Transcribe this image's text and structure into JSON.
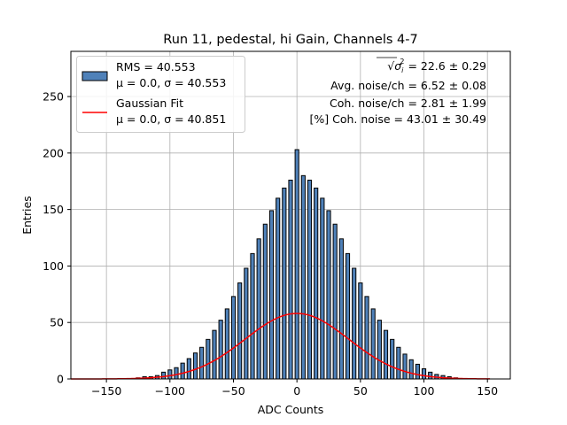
{
  "chart_data": {
    "type": "bar",
    "title": "Run 11, pedestal, hi Gain, Channels 4-7",
    "xlabel": "ADC Counts",
    "ylabel": "Entries",
    "xlim": [
      -178,
      168
    ],
    "ylim": [
      0,
      290
    ],
    "xticks": [
      -150,
      -100,
      -50,
      0,
      50,
      100,
      150
    ],
    "yticks": [
      0,
      50,
      100,
      150,
      200,
      250
    ],
    "grid": true,
    "legend_position": "top-left",
    "annotation_position": "top-right",
    "histogram": {
      "name": "RMS = 40.553",
      "label_line2": "μ = 0.0, σ = 40.553",
      "color": "#4f81b9",
      "edge_color": "#000000",
      "bins": [
        {
          "x": -125,
          "y": 1
        },
        {
          "x": -120,
          "y": 2
        },
        {
          "x": -115,
          "y": 2
        },
        {
          "x": -110,
          "y": 3
        },
        {
          "x": -105,
          "y": 6
        },
        {
          "x": -100,
          "y": 8
        },
        {
          "x": -95,
          "y": 10
        },
        {
          "x": -90,
          "y": 14
        },
        {
          "x": -85,
          "y": 18
        },
        {
          "x": -80,
          "y": 23
        },
        {
          "x": -75,
          "y": 28
        },
        {
          "x": -70,
          "y": 35
        },
        {
          "x": -65,
          "y": 43
        },
        {
          "x": -60,
          "y": 52
        },
        {
          "x": -55,
          "y": 62
        },
        {
          "x": -50,
          "y": 73
        },
        {
          "x": -45,
          "y": 85
        },
        {
          "x": -40,
          "y": 98
        },
        {
          "x": -35,
          "y": 111
        },
        {
          "x": -30,
          "y": 124
        },
        {
          "x": -25,
          "y": 137
        },
        {
          "x": -20,
          "y": 149
        },
        {
          "x": -15,
          "y": 160
        },
        {
          "x": -10,
          "y": 169
        },
        {
          "x": -5,
          "y": 176
        },
        {
          "x": 0,
          "y": 203
        },
        {
          "x": 5,
          "y": 180
        },
        {
          "x": 10,
          "y": 176
        },
        {
          "x": 15,
          "y": 169
        },
        {
          "x": 20,
          "y": 160
        },
        {
          "x": 25,
          "y": 149
        },
        {
          "x": 30,
          "y": 137
        },
        {
          "x": 35,
          "y": 124
        },
        {
          "x": 40,
          "y": 111
        },
        {
          "x": 45,
          "y": 98
        },
        {
          "x": 50,
          "y": 85
        },
        {
          "x": 55,
          "y": 73
        },
        {
          "x": 60,
          "y": 62
        },
        {
          "x": 65,
          "y": 52
        },
        {
          "x": 70,
          "y": 43
        },
        {
          "x": 75,
          "y": 35
        },
        {
          "x": 80,
          "y": 28
        },
        {
          "x": 85,
          "y": 22
        },
        {
          "x": 90,
          "y": 17
        },
        {
          "x": 95,
          "y": 13
        },
        {
          "x": 100,
          "y": 9
        },
        {
          "x": 105,
          "y": 6
        },
        {
          "x": 110,
          "y": 4
        },
        {
          "x": 115,
          "y": 3
        },
        {
          "x": 120,
          "y": 2
        },
        {
          "x": 125,
          "y": 1
        }
      ]
    },
    "fit": {
      "name": "Gaussian Fit",
      "label_line2": "μ = 0.0, σ = 40.851",
      "color": "#ff0000",
      "mu": 0.0,
      "sigma": 40.851,
      "peak": 58,
      "x_range": [
        -178,
        152
      ]
    },
    "annotations": [
      {
        "prefix": "√",
        "var": "σ",
        "sub": "i",
        "sup": "2",
        "rest": " = 22.6 ± 0.29"
      },
      {
        "text": "Avg. noise/ch = 6.52 ± 0.08"
      },
      {
        "text": "Coh. noise/ch = 2.81 ± 1.99"
      },
      {
        "text": "[%] Coh. noise = 43.01 ± 30.49"
      }
    ]
  }
}
